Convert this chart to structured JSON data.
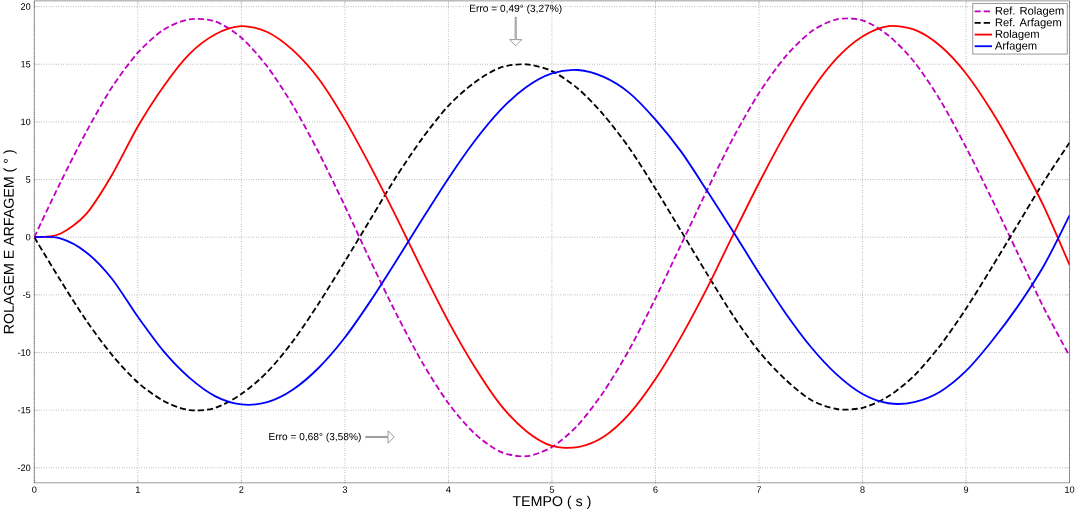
{
  "chart_data": {
    "type": "line",
    "xlabel": "TEMPO ( s )",
    "ylabel": "ROLAGEM E ARFAGEM ( ° )",
    "x": [
      0,
      0.25,
      0.5,
      0.75,
      1,
      1.25,
      1.5,
      1.75,
      2,
      2.25,
      2.5,
      2.75,
      3,
      3.25,
      3.5,
      3.75,
      4,
      4.25,
      4.5,
      4.75,
      5,
      5.25,
      5.5,
      5.75,
      6,
      6.25,
      6.5,
      6.75,
      7,
      7.25,
      7.5,
      7.75,
      8,
      8.25,
      8.5,
      8.75,
      9,
      9.25,
      9.5,
      9.75,
      10
    ],
    "series": [
      {
        "name": "Ref. Rolagem",
        "color": "#c000c0",
        "line_style": "dashed",
        "values": [
          0,
          4.7,
          9.1,
          13.0,
          16.0,
          18.0,
          18.9,
          18.7,
          17.3,
          14.8,
          11.4,
          7.3,
          2.7,
          -2.1,
          -6.7,
          -10.9,
          -14.4,
          -17.0,
          -18.6,
          -19.0,
          -18.2,
          -16.3,
          -13.4,
          -9.7,
          -5.3,
          -0.6,
          4.1,
          8.6,
          12.5,
          15.6,
          17.8,
          18.9,
          18.8,
          17.5,
          15.2,
          11.9,
          7.8,
          3.3,
          -1.4,
          -6.1,
          -10.3
        ]
      },
      {
        "name": "Ref. Arfagem",
        "color": "#000000",
        "line_style": "dashed",
        "values": [
          0,
          -3.7,
          -7.2,
          -10.2,
          -12.6,
          -14.2,
          -15.0,
          -14.8,
          -13.6,
          -11.7,
          -9.0,
          -5.7,
          -2.1,
          1.6,
          5.3,
          8.6,
          11.4,
          13.4,
          14.7,
          15.0,
          14.4,
          12.9,
          10.6,
          7.7,
          4.2,
          0.5,
          -3.2,
          -6.8,
          -9.9,
          -12.3,
          -14.1,
          -14.9,
          -14.8,
          -13.8,
          -12.0,
          -9.4,
          -6.2,
          -2.6,
          1.1,
          4.8,
          8.2
        ]
      },
      {
        "name": "Rolagem",
        "color": "#ff0000",
        "line_style": "solid",
        "values": [
          0,
          0.3,
          2.0,
          5.4,
          9.6,
          13.1,
          15.9,
          17.6,
          18.3,
          17.8,
          16.2,
          13.7,
          10.2,
          6.1,
          1.7,
          -2.9,
          -7.3,
          -11.2,
          -14.5,
          -16.8,
          -18.1,
          -18.2,
          -17.3,
          -15.3,
          -12.3,
          -8.6,
          -4.4,
          0.2,
          4.7,
          8.9,
          12.6,
          15.5,
          17.4,
          18.3,
          18.0,
          16.6,
          14.2,
          10.9,
          7.0,
          2.7,
          -2.4
        ]
      },
      {
        "name": "Arfagem",
        "color": "#0000ff",
        "line_style": "solid",
        "values": [
          0,
          -0.1,
          -1.3,
          -3.6,
          -6.9,
          -9.9,
          -12.2,
          -13.8,
          -14.5,
          -14.3,
          -13.2,
          -11.3,
          -8.7,
          -5.5,
          -2.0,
          1.6,
          5.1,
          8.3,
          11.0,
          13.0,
          14.2,
          14.5,
          13.9,
          12.5,
          10.2,
          7.4,
          4.0,
          0.5,
          -3.1,
          -6.5,
          -9.5,
          -11.9,
          -13.6,
          -14.4,
          -14.3,
          -13.4,
          -11.6,
          -9.0,
          -6.0,
          -2.5,
          1.9
        ]
      }
    ],
    "xlim": [
      0,
      10
    ],
    "ylim": [
      -21.3,
      20.5
    ],
    "xticks": [
      0,
      1,
      2,
      3,
      4,
      5,
      6,
      7,
      8,
      9,
      10
    ],
    "yticks": [
      -20,
      -15,
      -10,
      -5,
      0,
      5,
      10,
      15,
      20
    ],
    "grid": true,
    "legend": "top right",
    "marker": "none",
    "annotations": [
      "Erro = 0,49° (3,27%)",
      "Erro = 0,68° (3,58%)"
    ]
  }
}
